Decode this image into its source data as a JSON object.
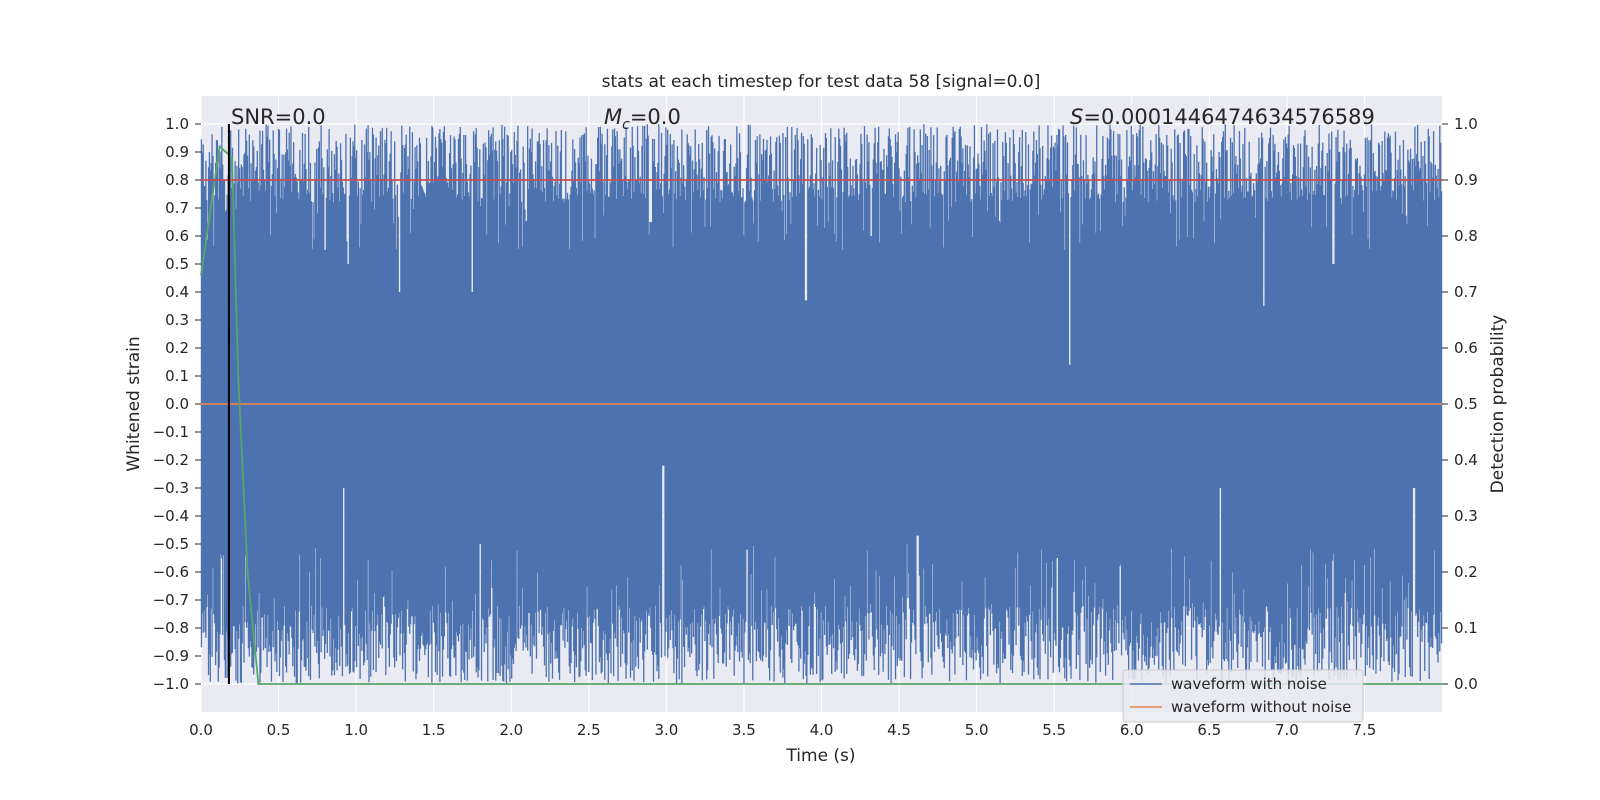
{
  "chart_data": {
    "type": "line",
    "title": "stats at each timestep for test data 58 [signal=0.0]",
    "xlabel": "Time (s)",
    "ylabel": "Whitened strain",
    "ylabel_right": "Detection probability",
    "xlim": [
      0.0,
      8.0
    ],
    "ylim": [
      -1.1,
      1.1
    ],
    "ylim_right": [
      -0.05,
      1.05
    ],
    "x_ticks": [
      "0.0",
      "0.5",
      "1.0",
      "1.5",
      "2.0",
      "2.5",
      "3.0",
      "3.5",
      "4.0",
      "4.5",
      "5.0",
      "5.5",
      "6.0",
      "6.5",
      "7.0",
      "7.5"
    ],
    "y_ticks": [
      "1.0",
      "0.9",
      "0.8",
      "0.7",
      "0.6",
      "0.5",
      "0.4",
      "0.3",
      "0.2",
      "0.1",
      "0.0",
      "−0.1",
      "−0.2",
      "−0.3",
      "−0.4",
      "−0.5",
      "−0.6",
      "−0.7",
      "−0.8",
      "−0.9",
      "−1.0"
    ],
    "y_ticks_right": [
      "1.0",
      "0.9",
      "0.8",
      "0.7",
      "0.6",
      "0.5",
      "0.4",
      "0.3",
      "0.2",
      "0.1",
      "0.0"
    ],
    "grid": true,
    "legend_position": "lower-right",
    "annotations": {
      "snr": "SNR=0.0",
      "mc_symbol": "M",
      "mc_sub": "c",
      "mc_value": "=0.0",
      "s_symbol": "S",
      "s_value": "=0.0001446474634576589"
    },
    "marker_line_x": 0.18,
    "threshold_right": 0.9,
    "series": [
      {
        "name": "waveform with noise",
        "color": "#4c72b0",
        "style": "dense noise filling the range about -1.0 to 1.0",
        "envelope_top_dips": [
          [
            0.8,
            0.55
          ],
          [
            0.95,
            0.5
          ],
          [
            1.28,
            0.4
          ],
          [
            1.75,
            0.4
          ],
          [
            2.9,
            0.65
          ],
          [
            3.9,
            0.37
          ],
          [
            4.32,
            0.6
          ],
          [
            5.6,
            0.14
          ],
          [
            6.85,
            0.35
          ],
          [
            7.3,
            0.5
          ]
        ],
        "envelope_bottom_peaks": [
          [
            0.92,
            -0.3
          ],
          [
            1.8,
            -0.5
          ],
          [
            2.98,
            -0.22
          ],
          [
            3.52,
            -0.52
          ],
          [
            4.62,
            -0.47
          ],
          [
            5.52,
            -0.55
          ],
          [
            6.57,
            -0.3
          ],
          [
            7.82,
            -0.3
          ]
        ]
      },
      {
        "name": "waveform without noise",
        "color": "#dd8452",
        "x": [
          0.0,
          8.0
        ],
        "y": [
          0.0,
          0.0
        ]
      },
      {
        "name": "detection probability",
        "axis": "right",
        "color": "#55a868",
        "x": [
          0.0,
          0.12,
          0.2,
          0.24,
          0.3,
          0.37,
          8.0
        ],
        "y": [
          0.73,
          0.96,
          0.94,
          0.55,
          0.2,
          0.0,
          0.0
        ]
      },
      {
        "name": "threshold",
        "axis": "right",
        "color": "#c44e52",
        "x": [
          0.0,
          8.0
        ],
        "y": [
          0.9,
          0.9
        ]
      }
    ]
  },
  "legend": {
    "noise_label": "waveform with noise",
    "clean_label": "waveform without noise"
  }
}
